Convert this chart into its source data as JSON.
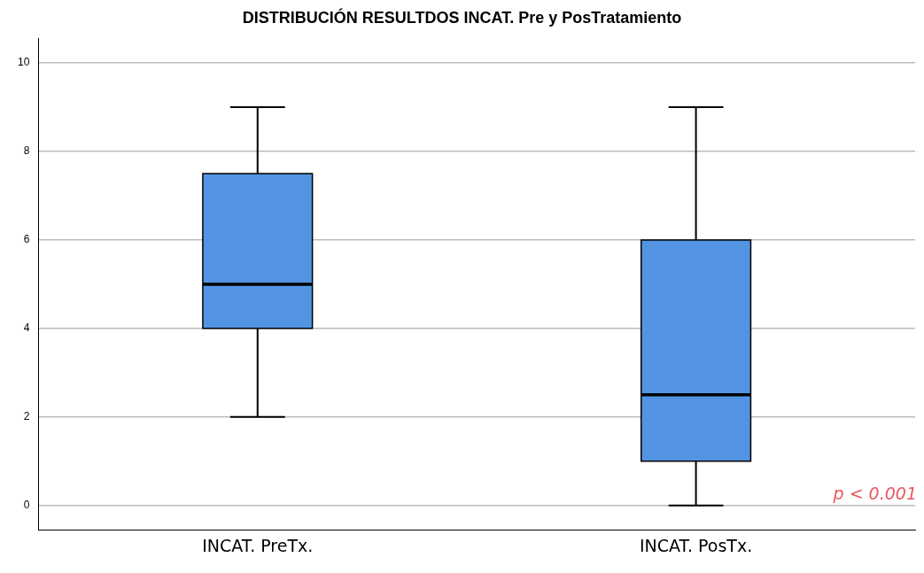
{
  "chart_data": {
    "type": "box",
    "title": "DISTRIBUCIÓN RESULTDOS INCAT. Pre y PosTratamiento",
    "categories": [
      "INCAT. PreTx.",
      "INCAT. PosTx."
    ],
    "boxes": [
      {
        "low": 2,
        "q1": 4,
        "median": 5,
        "q3": 7.5,
        "high": 9
      },
      {
        "low": 0,
        "q1": 1,
        "median": 2.5,
        "q3": 6,
        "high": 9
      }
    ],
    "color": "#5294e2",
    "ylim": [
      -0.55,
      10.55
    ],
    "yticks": [
      0,
      2,
      4,
      6,
      8,
      10
    ],
    "grid": "y",
    "annotations": [
      "p < 0.001"
    ]
  }
}
